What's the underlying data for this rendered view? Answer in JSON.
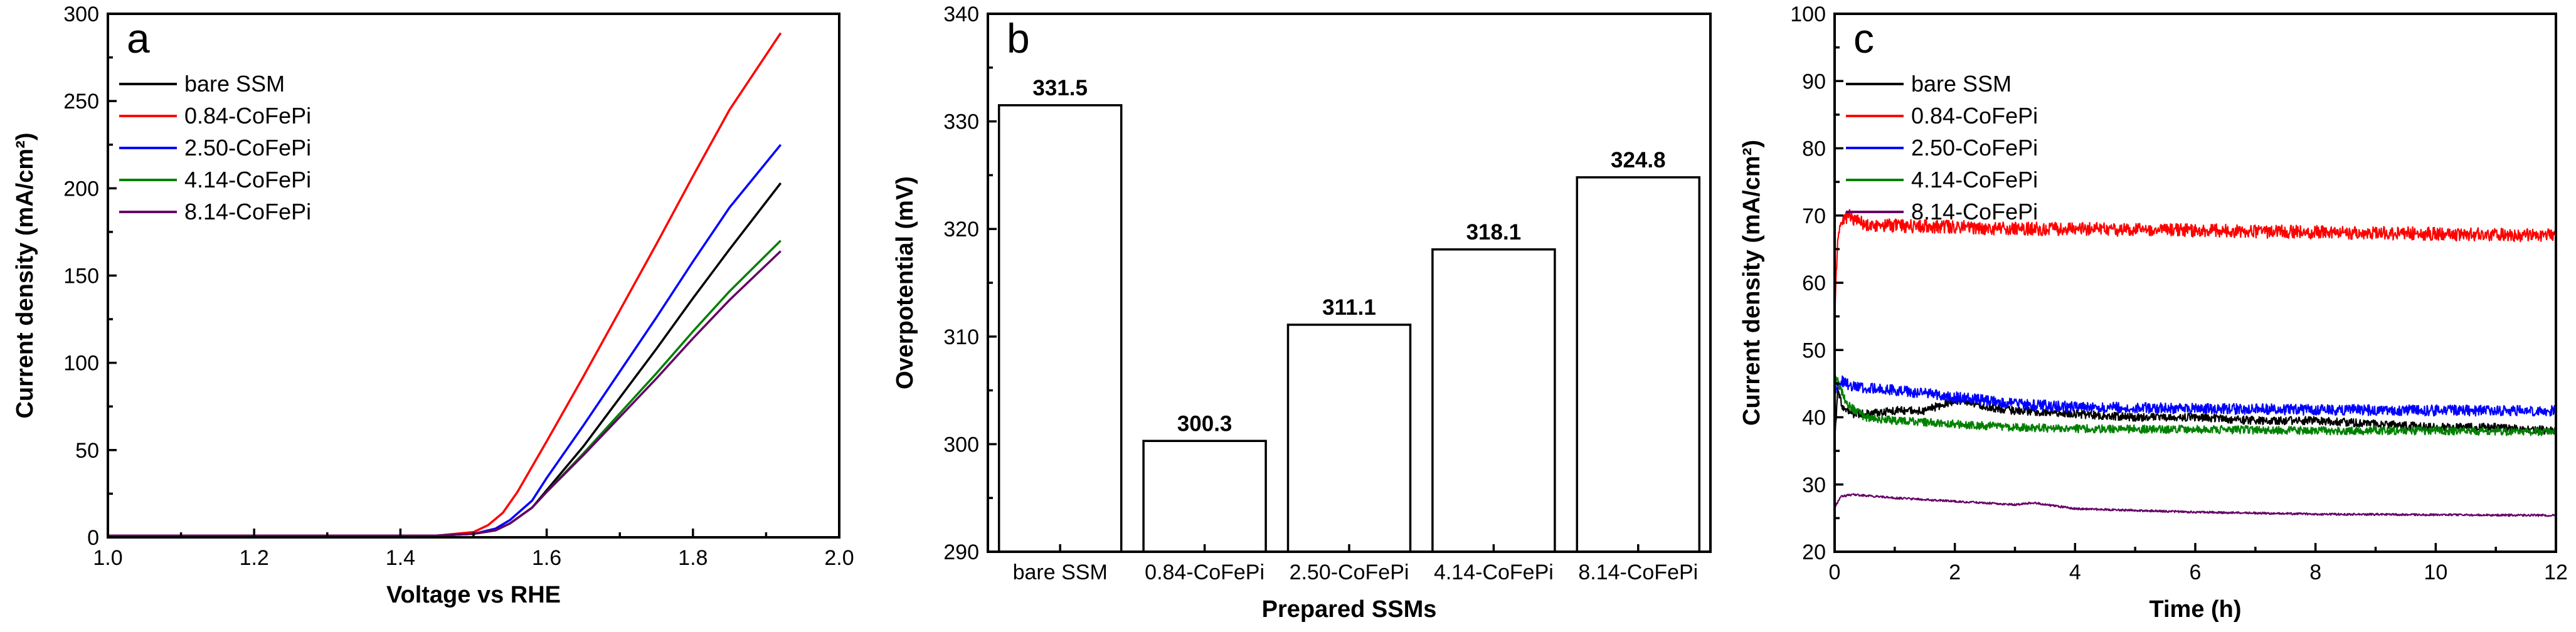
{
  "chart_data": [
    {
      "panel_letter": "a",
      "type": "line",
      "xlabel": "Voltage vs RHE",
      "ylabel": "Current density (mA/cm²)",
      "xlim": [
        1.0,
        2.0
      ],
      "ylim": [
        0,
        300
      ],
      "xticks": [
        "1.0",
        "1.2",
        "1.4",
        "1.6",
        "1.8",
        "2.0"
      ],
      "yticks": [
        "0",
        "50",
        "100",
        "150",
        "200",
        "250",
        "300"
      ],
      "legend_position": "upper-left",
      "grid": false,
      "series": [
        {
          "name": "bare SSM",
          "color": "#000000",
          "x": [
            1.0,
            1.45,
            1.5,
            1.53,
            1.55,
            1.58,
            1.6,
            1.65,
            1.7,
            1.75,
            1.8,
            1.85,
            1.92
          ],
          "y": [
            1,
            1,
            2,
            4,
            8,
            17,
            27,
            52,
            80,
            108,
            137,
            165,
            203
          ]
        },
        {
          "name": "0.84-CoFePi",
          "color": "#ff0000",
          "x": [
            1.0,
            1.45,
            1.5,
            1.52,
            1.54,
            1.56,
            1.6,
            1.65,
            1.7,
            1.75,
            1.8,
            1.85,
            1.92
          ],
          "y": [
            1,
            1,
            3,
            7,
            14,
            26,
            55,
            92,
            130,
            168,
            207,
            245,
            289
          ]
        },
        {
          "name": "2.50-CoFePi",
          "color": "#0000ff",
          "x": [
            1.0,
            1.45,
            1.5,
            1.53,
            1.55,
            1.58,
            1.6,
            1.65,
            1.7,
            1.75,
            1.8,
            1.85,
            1.92
          ],
          "y": [
            1,
            1,
            2,
            5,
            10,
            21,
            34,
            64,
            95,
            126,
            158,
            189,
            225
          ]
        },
        {
          "name": "4.14-CoFePi",
          "color": "#008000",
          "x": [
            1.0,
            1.45,
            1.5,
            1.53,
            1.55,
            1.58,
            1.6,
            1.65,
            1.7,
            1.75,
            1.8,
            1.85,
            1.92
          ],
          "y": [
            1,
            1,
            2,
            4,
            8,
            17,
            26,
            48,
            71,
            94,
            118,
            141,
            170
          ]
        },
        {
          "name": "8.14-CoFePi",
          "color": "#660066",
          "x": [
            1.0,
            1.45,
            1.5,
            1.53,
            1.55,
            1.58,
            1.6,
            1.65,
            1.7,
            1.75,
            1.8,
            1.85,
            1.92
          ],
          "y": [
            1,
            1,
            2,
            4,
            8,
            17,
            26,
            47,
            69,
            91,
            114,
            136,
            164
          ]
        }
      ]
    },
    {
      "panel_letter": "b",
      "type": "bar",
      "xlabel": "Prepared SSMs",
      "ylabel": "Overpotential (mV)",
      "ylim": [
        290,
        340
      ],
      "yticks": [
        "290",
        "300",
        "310",
        "320",
        "330",
        "340"
      ],
      "categories": [
        "bare SSM",
        "0.84-CoFePi",
        "2.50-CoFePi",
        "4.14-CoFePi",
        "8.14-CoFePi"
      ],
      "values": [
        331.5,
        300.3,
        311.1,
        318.1,
        324.8
      ],
      "value_labels": [
        "331.5",
        "300.3",
        "311.1",
        "318.1",
        "324.8"
      ],
      "grid": false
    },
    {
      "panel_letter": "c",
      "type": "line",
      "xlabel": "Time (h)",
      "ylabel": "Current density (mA/cm²)",
      "xlim": [
        0,
        12
      ],
      "ylim": [
        20,
        100
      ],
      "xticks": [
        "0",
        "2",
        "4",
        "6",
        "8",
        "10",
        "12"
      ],
      "yticks": [
        "20",
        "30",
        "40",
        "50",
        "60",
        "70",
        "80",
        "90",
        "100"
      ],
      "legend_position": "upper-left",
      "grid": false,
      "series": [
        {
          "name": "bare SSM",
          "color": "#000000",
          "noise": 0.6,
          "x": [
            0,
            0.05,
            0.15,
            0.3,
            0.6,
            1,
            1.5,
            2,
            2.5,
            3,
            4,
            5,
            6,
            7,
            8,
            9,
            10,
            11,
            12
          ],
          "y": [
            36,
            44,
            41,
            40.5,
            40.5,
            41,
            41,
            42.5,
            41.5,
            41,
            40.5,
            40,
            40,
            39.5,
            39.5,
            39,
            38.5,
            38.5,
            38
          ]
        },
        {
          "name": "0.84-CoFePi",
          "color": "#ff0000",
          "noise": 1.0,
          "x": [
            0,
            0.05,
            0.12,
            0.25,
            0.4,
            0.6,
            1,
            2,
            3,
            4,
            6,
            8,
            10,
            12
          ],
          "y": [
            55,
            67,
            69.5,
            70,
            69,
            68.5,
            68.5,
            68.3,
            68,
            68,
            67.8,
            67.5,
            67.3,
            67
          ]
        },
        {
          "name": "2.50-CoFePi",
          "color": "#0000ff",
          "noise": 0.8,
          "x": [
            0,
            0.1,
            0.3,
            1,
            2,
            3,
            4,
            6,
            8,
            10,
            12
          ],
          "y": [
            44,
            45.5,
            44.5,
            44,
            43,
            42,
            41.5,
            41.3,
            41.1,
            41,
            41
          ]
        },
        {
          "name": "4.14-CoFePi",
          "color": "#008000",
          "noise": 0.6,
          "x": [
            0,
            0.05,
            0.2,
            0.5,
            1,
            2,
            3,
            4,
            6,
            8,
            10,
            12
          ],
          "y": [
            46,
            45.5,
            42,
            40,
            39.5,
            39,
            38.5,
            38.3,
            38.2,
            38,
            38,
            37.8
          ]
        },
        {
          "name": "8.14-CoFePi",
          "color": "#660066",
          "noise": 0.15,
          "x": [
            0,
            0.1,
            0.3,
            1,
            2,
            3,
            3.3,
            3.6,
            4,
            6,
            8,
            10,
            12
          ],
          "y": [
            26.5,
            28.2,
            28.5,
            28,
            27.5,
            27,
            27.3,
            26.9,
            26.4,
            25.9,
            25.6,
            25.5,
            25.4
          ]
        }
      ]
    }
  ]
}
